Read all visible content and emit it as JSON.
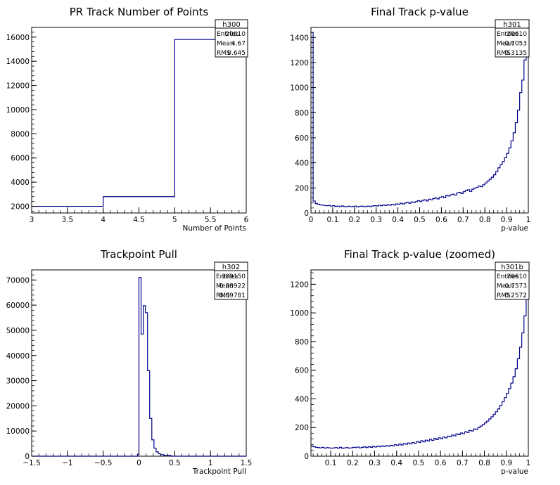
{
  "chart_data": [
    {
      "id": "p1",
      "type": "histogram",
      "title": "PR Track Number of Points",
      "xlabel": "Number of Points",
      "xlim": [
        3,
        6
      ],
      "ylim": [
        1450,
        16800
      ],
      "xticks": [
        "3",
        "3.5",
        "4",
        "4.5",
        "5",
        "5.5",
        "6"
      ],
      "yticks": [
        "2000",
        "4000",
        "6000",
        "8000",
        "10000",
        "12000",
        "14000",
        "16000"
      ],
      "bins": [
        {
          "x0": 3,
          "x1": 4,
          "y": 2000
        },
        {
          "x0": 4,
          "x1": 5,
          "y": 2800
        },
        {
          "x0": 5,
          "x1": 6,
          "y": 15800
        }
      ],
      "stats": {
        "name": "h300",
        "rows": [
          [
            "Entries",
            "20610"
          ],
          [
            "Mean",
            "4.67"
          ],
          [
            "RMS",
            "0.645"
          ]
        ]
      }
    },
    {
      "id": "p2",
      "type": "histogram",
      "title": "Final Track p-value",
      "xlabel": "p-value",
      "xlim": [
        0,
        1
      ],
      "ylim": [
        0,
        1480
      ],
      "xticks": [
        "0",
        "0.1",
        "0.2",
        "0.3",
        "0.4",
        "0.5",
        "0.6",
        "0.7",
        "0.8",
        "0.9",
        "1"
      ],
      "yticks": [
        "0",
        "200",
        "400",
        "600",
        "800",
        "1000",
        "1200",
        "1400"
      ],
      "nbins": 100,
      "values": [
        1440,
        95,
        75,
        70,
        65,
        62,
        60,
        58,
        60,
        55,
        58,
        52,
        55,
        50,
        56,
        52,
        50,
        54,
        50,
        52,
        55,
        48,
        52,
        55,
        50,
        52,
        55,
        50,
        56,
        58,
        56,
        62,
        58,
        64,
        60,
        66,
        62,
        68,
        64,
        72,
        70,
        78,
        72,
        80,
        84,
        78,
        88,
        84,
        90,
        98,
        92,
        100,
        105,
        96,
        110,
        104,
        115,
        120,
        112,
        125,
        130,
        122,
        140,
        135,
        145,
        150,
        142,
        160,
        165,
        155,
        170,
        178,
        185,
        172,
        190,
        198,
        205,
        215,
        210,
        225,
        240,
        255,
        270,
        285,
        305,
        330,
        360,
        385,
        410,
        440,
        475,
        520,
        575,
        640,
        720,
        820,
        960,
        1060,
        1220,
        1480
      ],
      "stats": {
        "name": "h301",
        "rows": [
          [
            "Entries",
            "20610"
          ],
          [
            "Mean",
            "0.7053"
          ],
          [
            "RMS",
            "0.3135"
          ]
        ]
      }
    },
    {
      "id": "p3",
      "type": "histogram",
      "title": "Trackpoint Pull",
      "xlabel": "Trackpoint Pull",
      "xlim": [
        -1.5,
        1.5
      ],
      "ylim": [
        0,
        74000
      ],
      "xticks": [
        "−1.5",
        "−1",
        "−0.5",
        "0",
        "0.5",
        "1",
        "1.5"
      ],
      "yticks": [
        "0",
        "10000",
        "20000",
        "30000",
        "40000",
        "50000",
        "60000",
        "70000"
      ],
      "bins": [
        {
          "x0": -1.5,
          "x1": -0.02,
          "y": 0
        },
        {
          "x0": -0.02,
          "x1": 0.0,
          "y": 800
        },
        {
          "x0": 0.0,
          "x1": 0.03,
          "y": 71000
        },
        {
          "x0": 0.03,
          "x1": 0.06,
          "y": 48500
        },
        {
          "x0": 0.06,
          "x1": 0.09,
          "y": 59800
        },
        {
          "x0": 0.09,
          "x1": 0.12,
          "y": 57000
        },
        {
          "x0": 0.12,
          "x1": 0.15,
          "y": 34000
        },
        {
          "x0": 0.15,
          "x1": 0.18,
          "y": 15000
        },
        {
          "x0": 0.18,
          "x1": 0.21,
          "y": 6500
        },
        {
          "x0": 0.21,
          "x1": 0.24,
          "y": 3200
        },
        {
          "x0": 0.24,
          "x1": 0.27,
          "y": 1700
        },
        {
          "x0": 0.27,
          "x1": 0.3,
          "y": 1000
        },
        {
          "x0": 0.3,
          "x1": 0.35,
          "y": 600
        },
        {
          "x0": 0.35,
          "x1": 0.45,
          "y": 300
        },
        {
          "x0": 0.45,
          "x1": 1.5,
          "y": 0
        }
      ],
      "stats": {
        "name": "h302",
        "rows": [
          [
            "Entries",
            "309150"
          ],
          [
            "Mean",
            "0.08922"
          ],
          [
            "RMS",
            "0.09781"
          ]
        ]
      }
    },
    {
      "id": "p4",
      "type": "histogram",
      "title": "Final Track p-value (zoomed)",
      "xlabel": "p-value",
      "xlim": [
        0.01,
        1
      ],
      "ylim": [
        0,
        1300
      ],
      "xticks": [
        "0.1",
        "0.2",
        "0.3",
        "0.4",
        "0.5",
        "0.6",
        "0.7",
        "0.8",
        "0.9",
        "1"
      ],
      "yticks": [
        "0",
        "200",
        "400",
        "600",
        "800",
        "1000",
        "1200"
      ],
      "nbins": 99,
      "values": [
        70,
        66,
        62,
        60,
        58,
        62,
        56,
        60,
        58,
        55,
        58,
        60,
        56,
        62,
        55,
        58,
        60,
        56,
        58,
        62,
        60,
        64,
        58,
        62,
        65,
        60,
        66,
        62,
        68,
        64,
        70,
        66,
        72,
        68,
        74,
        70,
        76,
        72,
        80,
        76,
        84,
        78,
        88,
        84,
        92,
        86,
        96,
        90,
        102,
        96,
        108,
        100,
        112,
        106,
        118,
        110,
        124,
        116,
        128,
        122,
        134,
        128,
        140,
        136,
        148,
        142,
        155,
        150,
        162,
        158,
        170,
        166,
        180,
        176,
        190,
        186,
        200,
        210,
        220,
        232,
        245,
        260,
        275,
        292,
        310,
        330,
        355,
        380,
        408,
        438,
        472,
        510,
        555,
        610,
        680,
        760,
        860,
        980,
        1290
      ],
      "stats": {
        "name": "h301b",
        "rows": [
          [
            "Entries",
            "20610"
          ],
          [
            "Mean",
            "0.7573"
          ],
          [
            "RMS",
            "0.2572"
          ]
        ]
      }
    }
  ]
}
